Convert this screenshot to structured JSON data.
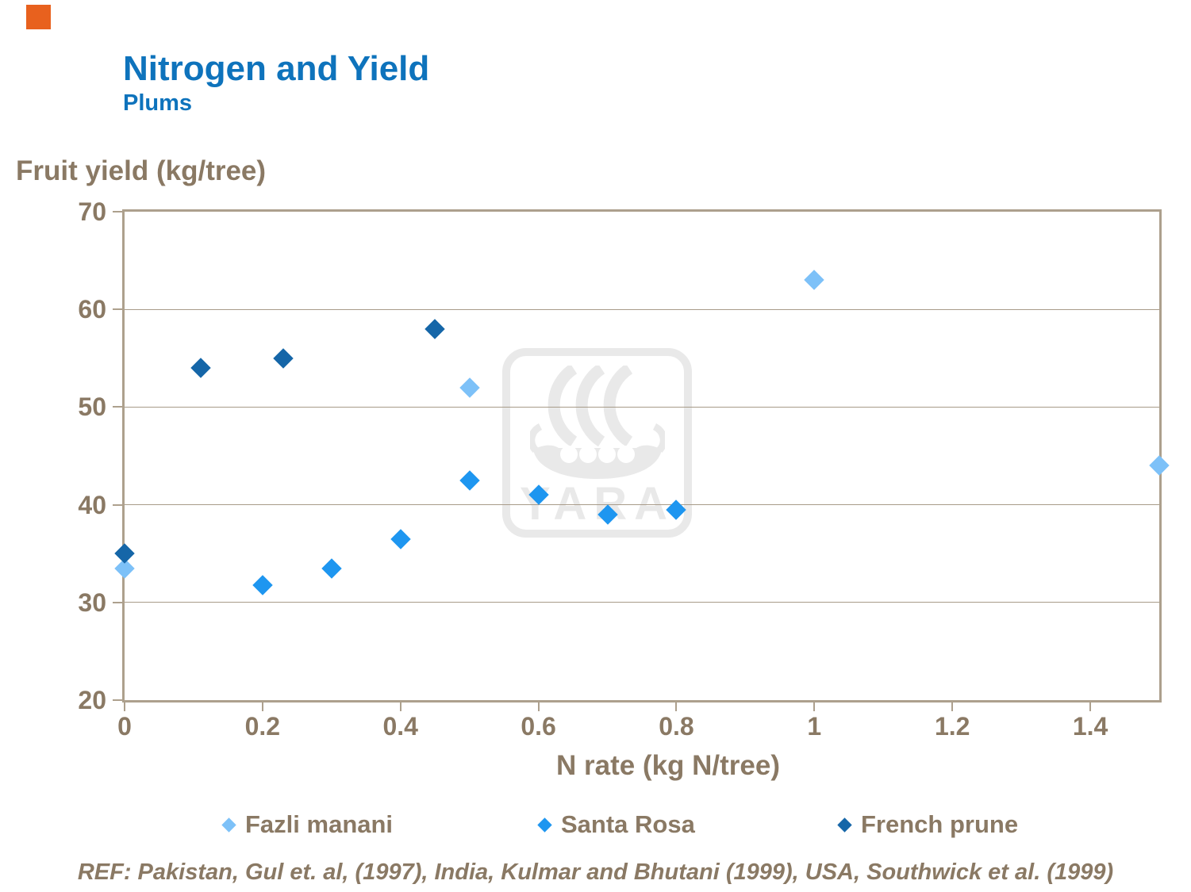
{
  "header": {
    "title": "Nitrogen and Yield",
    "subtitle": "Plums"
  },
  "footer": {
    "reference": "REF: Pakistan, Gul et. al, (1997), India, Kulmar and Bhutani (1999), USA, Southwick et al. (1999)"
  },
  "watermark": {
    "text": "YARA",
    "icon": "viking-ship-icon",
    "color": "#E9E9E9"
  },
  "colors": {
    "title_blue": "#0E73BC",
    "text_tan": "#8A7964",
    "plot_border": "#ADA08D",
    "gridline": "#A89B89",
    "accent_orange": "#E8611E",
    "background": "#FFFFFF"
  },
  "chart_data": {
    "type": "scatter",
    "title": "",
    "xlabel": "N rate (kg N/tree)",
    "ylabel": "Fruit yield (kg/tree)",
    "xlim": [
      0,
      1.5
    ],
    "ylim": [
      20,
      70
    ],
    "grid": "horizontal",
    "gridline_values": [
      30,
      40,
      50,
      60
    ],
    "y_ticks": [
      {
        "value": 70,
        "label": "70"
      },
      {
        "value": 60,
        "label": "60"
      },
      {
        "value": 50,
        "label": "50"
      },
      {
        "value": 40,
        "label": "40"
      },
      {
        "value": 30,
        "label": "30"
      },
      {
        "value": 20,
        "label": "20"
      }
    ],
    "x_ticks": [
      {
        "value": 0,
        "label": "0"
      },
      {
        "value": 0.2,
        "label": "0.2"
      },
      {
        "value": 0.4,
        "label": "0.4"
      },
      {
        "value": 0.6,
        "label": "0.6"
      },
      {
        "value": 0.8,
        "label": "0.8"
      },
      {
        "value": 1,
        "label": "1"
      },
      {
        "value": 1.2,
        "label": "1.2"
      },
      {
        "value": 1.4,
        "label": "1.4"
      }
    ],
    "legend_position": "bottom",
    "marker": "diamond",
    "series": [
      {
        "name": "Fazli manani",
        "color": "#7DC1F8",
        "points": [
          [
            0,
            33.5
          ],
          [
            0.5,
            52
          ],
          [
            1,
            63
          ],
          [
            1.5,
            44
          ]
        ]
      },
      {
        "name": "Santa Rosa",
        "color": "#1E96F0",
        "points": [
          [
            0.2,
            31.8
          ],
          [
            0.3,
            33.5
          ],
          [
            0.4,
            36.5
          ],
          [
            0.5,
            42.5
          ],
          [
            0.6,
            41
          ],
          [
            0.7,
            39
          ],
          [
            0.8,
            39.5
          ]
        ]
      },
      {
        "name": "French prune",
        "color": "#1566A8",
        "points": [
          [
            0,
            35
          ],
          [
            0.11,
            54
          ],
          [
            0.23,
            55
          ],
          [
            0.45,
            58
          ]
        ]
      }
    ]
  }
}
